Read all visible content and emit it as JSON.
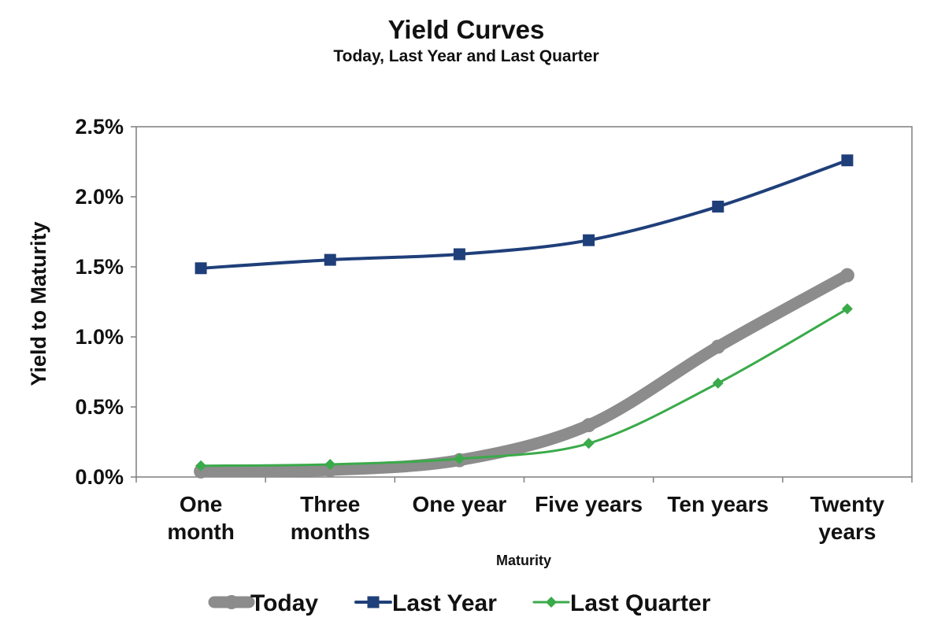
{
  "chart_data": {
    "type": "line",
    "title": "Yield Curves",
    "subtitle": "Today, Last Year and Last Quarter",
    "xlabel": "Maturity",
    "ylabel": "Yield to Maturity",
    "categories": [
      [
        "One",
        "month"
      ],
      [
        "Three",
        "months"
      ],
      [
        "One year"
      ],
      [
        "Five years"
      ],
      [
        "Ten years"
      ],
      [
        "Twenty",
        "years"
      ]
    ],
    "ylim": [
      0,
      0.025
    ],
    "yticks": [
      "0.0%",
      "0.5%",
      "1.0%",
      "1.5%",
      "2.0%",
      "2.5%"
    ],
    "grid": false,
    "legend_position": "bottom",
    "series": [
      {
        "name": "Today",
        "values": [
          0.0004,
          0.0005,
          0.0012,
          0.0037,
          0.0093,
          0.0144
        ],
        "color": "#8c8c8c",
        "marker": "circle"
      },
      {
        "name": "Last Year",
        "values": [
          0.0149,
          0.0155,
          0.0159,
          0.0169,
          0.0193,
          0.0226
        ],
        "color": "#1f3f7a",
        "marker": "square"
      },
      {
        "name": "Last Quarter",
        "values": [
          0.0008,
          0.0009,
          0.0013,
          0.0024,
          0.0067,
          0.012
        ],
        "color": "#3aaa4a",
        "marker": "diamond"
      }
    ]
  }
}
